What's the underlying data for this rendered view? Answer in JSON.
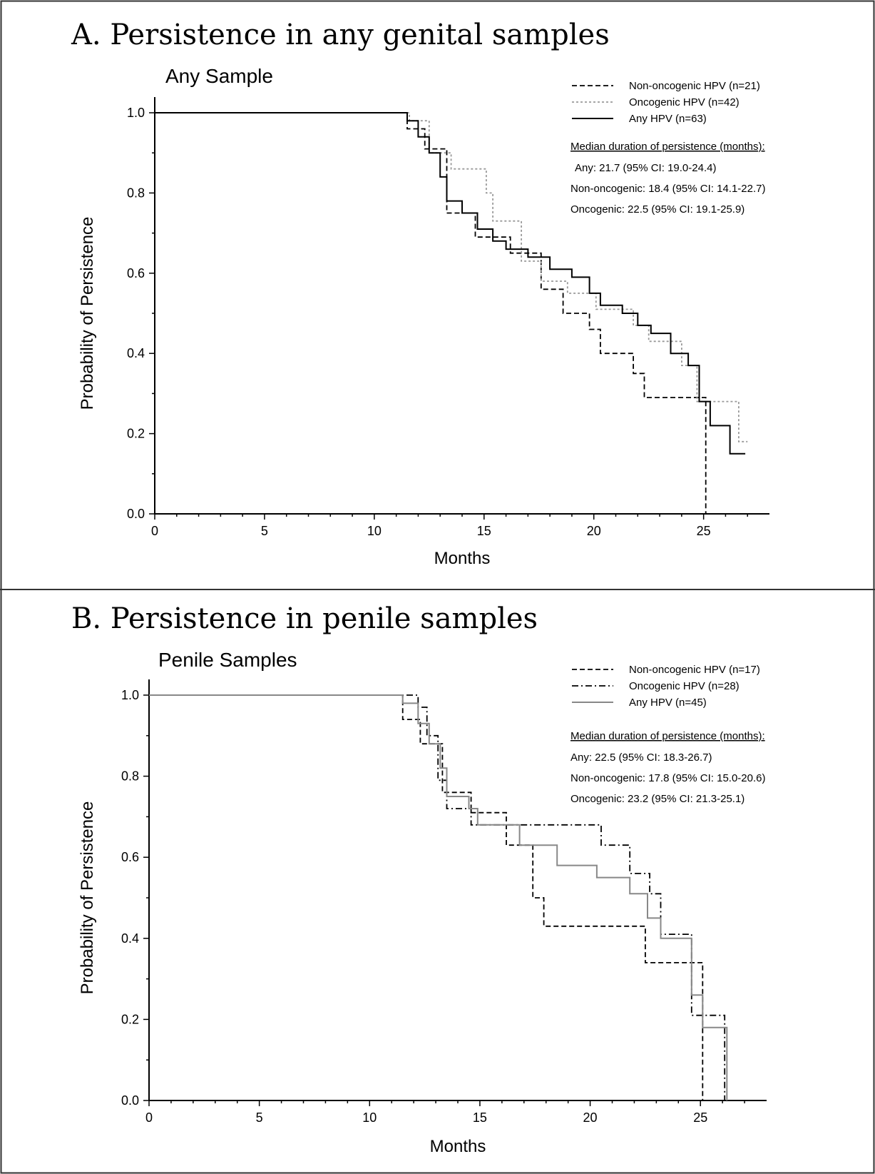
{
  "chart_data": [
    {
      "type": "line",
      "panel_title": "A.  Persistence in any genital samples",
      "title": "Any Sample",
      "xlabel": "Months",
      "ylabel": "Probability of Persistence",
      "xlim": [
        0,
        28
      ],
      "ylim": [
        0,
        1.05
      ],
      "x_ticks": [
        0,
        5,
        10,
        15,
        20,
        25
      ],
      "x_tick_labels": [
        "0",
        "5",
        "10",
        "15",
        "20",
        "25"
      ],
      "y_ticks": [
        0,
        0.2,
        0.4,
        0.6,
        0.8,
        1.0
      ],
      "y_tick_labels": [
        "0.0",
        "0.2",
        "0.4",
        "0.6",
        "0.8",
        "1.0"
      ],
      "legend_position": "top-right",
      "series": [
        {
          "name": "Non-oncogenic HPV (n=21)",
          "style": "dashed",
          "color": "#000000",
          "points": [
            [
              0,
              1.0
            ],
            [
              11.5,
              1.0
            ],
            [
              11.5,
              0.96
            ],
            [
              12.3,
              0.96
            ],
            [
              12.3,
              0.91
            ],
            [
              13.3,
              0.91
            ],
            [
              13.3,
              0.75
            ],
            [
              14.6,
              0.75
            ],
            [
              14.6,
              0.69
            ],
            [
              16.2,
              0.69
            ],
            [
              16.2,
              0.65
            ],
            [
              17.6,
              0.65
            ],
            [
              17.6,
              0.56
            ],
            [
              18.6,
              0.56
            ],
            [
              18.6,
              0.5
            ],
            [
              19.8,
              0.5
            ],
            [
              19.8,
              0.46
            ],
            [
              20.3,
              0.46
            ],
            [
              20.3,
              0.4
            ],
            [
              21.8,
              0.4
            ],
            [
              21.8,
              0.35
            ],
            [
              22.3,
              0.35
            ],
            [
              22.3,
              0.29
            ],
            [
              25.1,
              0.29
            ],
            [
              25.1,
              0.0
            ]
          ]
        },
        {
          "name": "Oncogenic HPV (n=42)",
          "style": "dotted",
          "color": "#999999",
          "points": [
            [
              0,
              1.0
            ],
            [
              11.6,
              1.0
            ],
            [
              11.6,
              0.98
            ],
            [
              12.5,
              0.98
            ],
            [
              12.5,
              0.9
            ],
            [
              13.5,
              0.9
            ],
            [
              13.5,
              0.86
            ],
            [
              15.1,
              0.86
            ],
            [
              15.1,
              0.8
            ],
            [
              15.4,
              0.8
            ],
            [
              15.4,
              0.73
            ],
            [
              16.7,
              0.73
            ],
            [
              16.7,
              0.63
            ],
            [
              17.6,
              0.63
            ],
            [
              17.6,
              0.58
            ],
            [
              18.8,
              0.58
            ],
            [
              18.8,
              0.55
            ],
            [
              20.1,
              0.55
            ],
            [
              20.1,
              0.51
            ],
            [
              21.8,
              0.51
            ],
            [
              21.8,
              0.47
            ],
            [
              22.5,
              0.47
            ],
            [
              22.5,
              0.43
            ],
            [
              24.0,
              0.43
            ],
            [
              24.0,
              0.37
            ],
            [
              24.7,
              0.37
            ],
            [
              24.7,
              0.28
            ],
            [
              26.6,
              0.28
            ],
            [
              26.6,
              0.18
            ],
            [
              27.0,
              0.18
            ]
          ]
        },
        {
          "name": "Any HPV (n=63)",
          "style": "solid",
          "color": "#000000",
          "points": [
            [
              0,
              1.0
            ],
            [
              11.5,
              1.0
            ],
            [
              11.5,
              0.98
            ],
            [
              12.0,
              0.98
            ],
            [
              12.0,
              0.94
            ],
            [
              12.5,
              0.94
            ],
            [
              12.5,
              0.9
            ],
            [
              13.0,
              0.9
            ],
            [
              13.0,
              0.84
            ],
            [
              13.3,
              0.84
            ],
            [
              13.3,
              0.78
            ],
            [
              14.0,
              0.78
            ],
            [
              14.0,
              0.75
            ],
            [
              14.7,
              0.75
            ],
            [
              14.7,
              0.71
            ],
            [
              15.4,
              0.71
            ],
            [
              15.4,
              0.68
            ],
            [
              16.0,
              0.68
            ],
            [
              16.0,
              0.66
            ],
            [
              17.0,
              0.66
            ],
            [
              17.0,
              0.64
            ],
            [
              18.0,
              0.64
            ],
            [
              18.0,
              0.61
            ],
            [
              19.0,
              0.61
            ],
            [
              19.0,
              0.59
            ],
            [
              19.8,
              0.59
            ],
            [
              19.8,
              0.55
            ],
            [
              20.3,
              0.55
            ],
            [
              20.3,
              0.52
            ],
            [
              21.3,
              0.52
            ],
            [
              21.3,
              0.5
            ],
            [
              22.0,
              0.5
            ],
            [
              22.0,
              0.47
            ],
            [
              22.6,
              0.47
            ],
            [
              22.6,
              0.45
            ],
            [
              23.5,
              0.45
            ],
            [
              23.5,
              0.4
            ],
            [
              24.3,
              0.4
            ],
            [
              24.3,
              0.37
            ],
            [
              24.8,
              0.37
            ],
            [
              24.8,
              0.28
            ],
            [
              25.3,
              0.28
            ],
            [
              25.3,
              0.22
            ],
            [
              26.2,
              0.22
            ],
            [
              26.2,
              0.15
            ],
            [
              26.9,
              0.15
            ]
          ]
        }
      ],
      "legend": [
        "Non-oncogenic HPV (n=21)",
        "Oncogenic HPV (n=42)",
        "Any HPV (n=63)"
      ],
      "median_header": "Median duration of persistence (months):",
      "median_lines": [
        "Any: 21.7 (95% CI: 19.0-24.4)",
        "Non-oncogenic: 18.4 (95% CI: 14.1-22.7)",
        "Oncogenic: 22.5 (95% CI: 19.1-25.9)"
      ]
    },
    {
      "type": "line",
      "panel_title": "B. Persistence in penile samples",
      "title": "Penile Samples",
      "xlabel": "Months",
      "ylabel": "Probability of Persistence",
      "xlim": [
        0,
        28
      ],
      "ylim": [
        0,
        1.05
      ],
      "x_ticks": [
        0,
        5,
        10,
        15,
        20,
        25
      ],
      "x_tick_labels": [
        "0",
        "5",
        "10",
        "15",
        "20",
        "25"
      ],
      "y_ticks": [
        0,
        0.2,
        0.4,
        0.6,
        0.8,
        1.0
      ],
      "y_tick_labels": [
        "0.0",
        "0.2",
        "0.4",
        "0.6",
        "0.8",
        "1.0"
      ],
      "legend_position": "top-right",
      "series": [
        {
          "name": "Non-oncogenic HPV (n=17)",
          "style": "dashed",
          "color": "#000000",
          "points": [
            [
              0,
              1.0
            ],
            [
              11.5,
              1.0
            ],
            [
              11.5,
              0.94
            ],
            [
              12.3,
              0.94
            ],
            [
              12.3,
              0.88
            ],
            [
              13.3,
              0.88
            ],
            [
              13.3,
              0.76
            ],
            [
              14.6,
              0.76
            ],
            [
              14.6,
              0.71
            ],
            [
              16.2,
              0.71
            ],
            [
              16.2,
              0.63
            ],
            [
              17.4,
              0.63
            ],
            [
              17.4,
              0.5
            ],
            [
              17.9,
              0.5
            ],
            [
              17.9,
              0.43
            ],
            [
              22.5,
              0.43
            ],
            [
              22.5,
              0.34
            ],
            [
              25.1,
              0.34
            ],
            [
              25.1,
              0.0
            ]
          ]
        },
        {
          "name": "Oncogenic HPV (n=28)",
          "style": "dashdot",
          "color": "#000000",
          "points": [
            [
              0,
              1.0
            ],
            [
              12.2,
              1.0
            ],
            [
              12.2,
              0.97
            ],
            [
              12.6,
              0.97
            ],
            [
              12.6,
              0.9
            ],
            [
              13.1,
              0.9
            ],
            [
              13.1,
              0.79
            ],
            [
              13.5,
              0.79
            ],
            [
              13.5,
              0.72
            ],
            [
              14.6,
              0.72
            ],
            [
              14.6,
              0.68
            ],
            [
              15.6,
              0.68
            ],
            [
              15.6,
              0.68
            ],
            [
              20.5,
              0.68
            ],
            [
              20.5,
              0.63
            ],
            [
              21.8,
              0.63
            ],
            [
              21.8,
              0.56
            ],
            [
              22.7,
              0.56
            ],
            [
              22.7,
              0.51
            ],
            [
              23.2,
              0.51
            ],
            [
              23.2,
              0.41
            ],
            [
              24.6,
              0.41
            ],
            [
              24.6,
              0.21
            ],
            [
              26.1,
              0.21
            ],
            [
              26.1,
              0.0
            ]
          ]
        },
        {
          "name": "Any HPV (n=45)",
          "style": "solid",
          "color": "#888888",
          "points": [
            [
              0,
              1.0
            ],
            [
              11.5,
              1.0
            ],
            [
              11.5,
              0.98
            ],
            [
              12.2,
              0.98
            ],
            [
              12.2,
              0.93
            ],
            [
              12.7,
              0.93
            ],
            [
              12.7,
              0.88
            ],
            [
              13.2,
              0.88
            ],
            [
              13.2,
              0.82
            ],
            [
              13.5,
              0.82
            ],
            [
              13.5,
              0.75
            ],
            [
              14.5,
              0.75
            ],
            [
              14.5,
              0.72
            ],
            [
              14.9,
              0.72
            ],
            [
              14.9,
              0.68
            ],
            [
              16.8,
              0.68
            ],
            [
              16.8,
              0.63
            ],
            [
              18.5,
              0.63
            ],
            [
              18.5,
              0.58
            ],
            [
              20.3,
              0.58
            ],
            [
              20.3,
              0.55
            ],
            [
              21.8,
              0.55
            ],
            [
              21.8,
              0.51
            ],
            [
              22.6,
              0.51
            ],
            [
              22.6,
              0.45
            ],
            [
              23.2,
              0.45
            ],
            [
              23.2,
              0.4
            ],
            [
              24.6,
              0.4
            ],
            [
              24.6,
              0.26
            ],
            [
              25.1,
              0.26
            ],
            [
              25.1,
              0.18
            ],
            [
              26.2,
              0.18
            ],
            [
              26.2,
              0.0
            ]
          ]
        }
      ],
      "legend": [
        "Non-oncogenic HPV (n=17)",
        "Oncogenic HPV (n=28)",
        "Any HPV (n=45)"
      ],
      "median_header": "Median duration of persistence (months):",
      "median_lines": [
        "Any: 22.5 (95% CI: 18.3-26.7)",
        "Non-oncogenic: 17.8 (95% CI: 15.0-20.6)",
        "Oncogenic: 23.2 (95% CI: 21.3-25.1)"
      ]
    }
  ]
}
